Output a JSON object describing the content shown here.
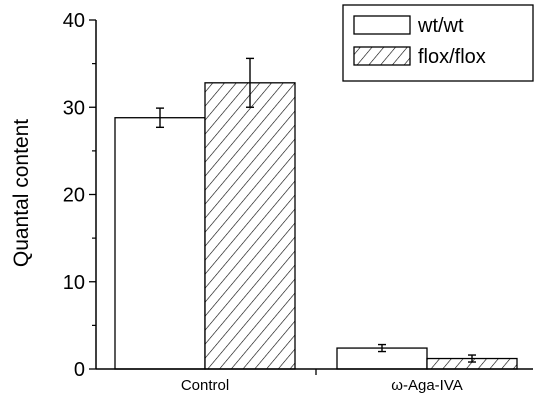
{
  "chart_data": {
    "type": "bar",
    "title": "",
    "xlabel": "",
    "ylabel": "Quantal content",
    "ylim": [
      0,
      40
    ],
    "yticks": [
      0,
      10,
      20,
      30,
      40
    ],
    "yticks_minor": [
      5,
      15,
      25,
      35
    ],
    "categories": [
      "Control",
      "ω-Aga-IVA"
    ],
    "series": [
      {
        "name": "wt/wt",
        "values": [
          28.8,
          2.4
        ],
        "errors": [
          1.1,
          0.4
        ],
        "fill": "solid",
        "color": "#ffffff"
      },
      {
        "name": "flox/flox",
        "values": [
          32.8,
          1.2
        ],
        "errors": [
          2.8,
          0.4
        ],
        "fill": "hatch",
        "color": "#ffffff"
      }
    ],
    "legend": {
      "position": "top-right"
    },
    "grid": false
  }
}
